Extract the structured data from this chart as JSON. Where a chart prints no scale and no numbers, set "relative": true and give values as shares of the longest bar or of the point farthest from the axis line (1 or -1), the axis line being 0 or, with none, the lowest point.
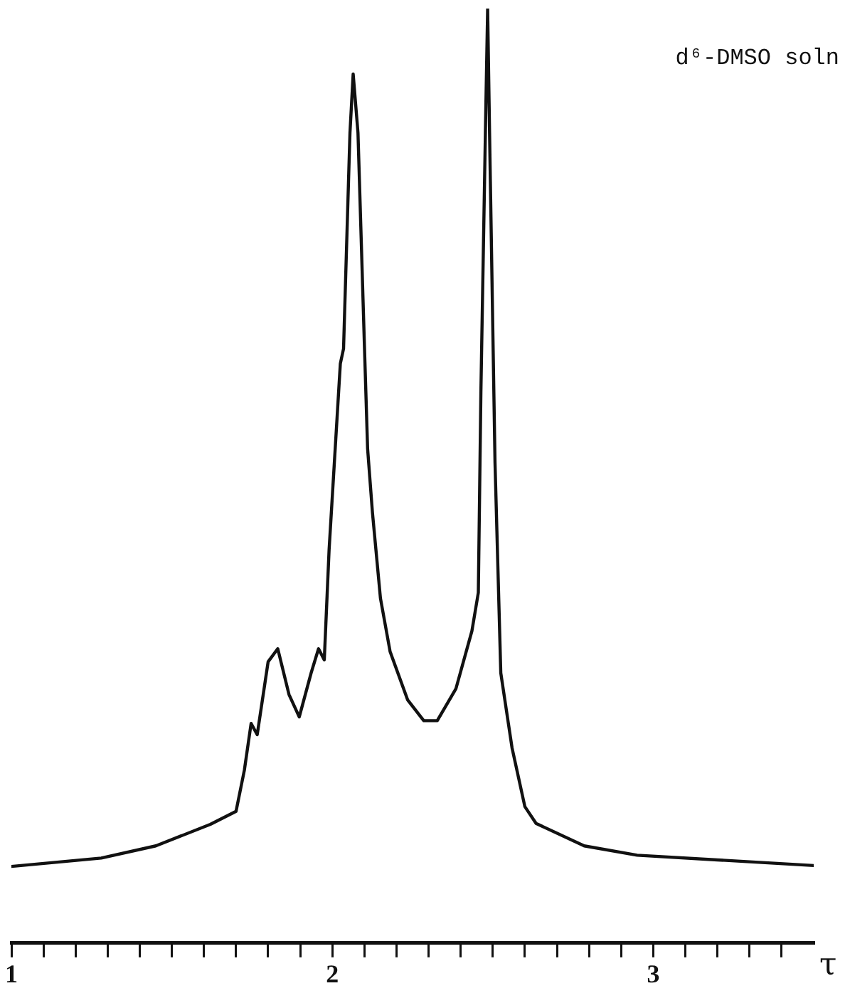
{
  "chart_data": {
    "type": "line",
    "xlabel": "τ",
    "relative": true,
    "marker": "none",
    "line_style": "solid",
    "grid": false,
    "legend": false,
    "tick_labels": "x",
    "xlim": [
      1,
      3.5
    ],
    "xticks": [
      1,
      {
        "value": 1.1,
        "label": null
      },
      {
        "value": 1.2,
        "label": null
      },
      {
        "value": 1.3,
        "label": null
      },
      {
        "value": 1.4,
        "label": null
      },
      {
        "value": 1.5,
        "label": null
      },
      {
        "value": 1.6,
        "label": null
      },
      {
        "value": 1.7,
        "label": null
      },
      {
        "value": 1.8,
        "label": null
      },
      {
        "value": 1.9,
        "label": null
      },
      2,
      {
        "value": 2.1,
        "label": null
      },
      {
        "value": 2.2,
        "label": null
      },
      {
        "value": 2.3,
        "label": null
      },
      {
        "value": 2.4,
        "label": null
      },
      {
        "value": 2.5,
        "label": null
      },
      {
        "value": 2.6,
        "label": null
      },
      {
        "value": 2.7,
        "label": null
      },
      {
        "value": 2.8,
        "label": null
      },
      {
        "value": 2.9,
        "label": null
      },
      3,
      {
        "value": 3.1,
        "label": null
      },
      {
        "value": 3.2,
        "label": null
      },
      {
        "value": 3.3,
        "label": null
      },
      {
        "value": 3.4,
        "label": null
      }
    ],
    "annotations": [
      "d⁶-DMSO soln"
    ],
    "series": [
      {
        "color": "#111111",
        "x": [
          1.0,
          1.28,
          1.45,
          1.62,
          1.7,
          1.726,
          1.747,
          1.766,
          1.8,
          1.83,
          1.865,
          1.897,
          1.934,
          1.957,
          1.975,
          1.99,
          2.025,
          2.035,
          2.055,
          2.065,
          2.08,
          2.1,
          2.11,
          2.125,
          2.15,
          2.18,
          2.235,
          2.285,
          2.327,
          2.385,
          2.435,
          2.455,
          2.463,
          2.477,
          2.484,
          2.49,
          2.507,
          2.525,
          2.56,
          2.6,
          2.635,
          2.785,
          2.95,
          3.2,
          3.5
        ],
        "values": [
          0.082,
          0.091,
          0.104,
          0.127,
          0.141,
          0.185,
          0.235,
          0.223,
          0.301,
          0.315,
          0.266,
          0.242,
          0.289,
          0.315,
          0.303,
          0.421,
          0.62,
          0.636,
          0.867,
          0.93,
          0.867,
          0.64,
          0.529,
          0.461,
          0.369,
          0.312,
          0.26,
          0.238,
          0.238,
          0.272,
          0.334,
          0.375,
          0.59,
          0.867,
          1.0,
          0.867,
          0.514,
          0.289,
          0.209,
          0.146,
          0.128,
          0.104,
          0.094,
          0.089,
          0.083
        ]
      }
    ]
  }
}
